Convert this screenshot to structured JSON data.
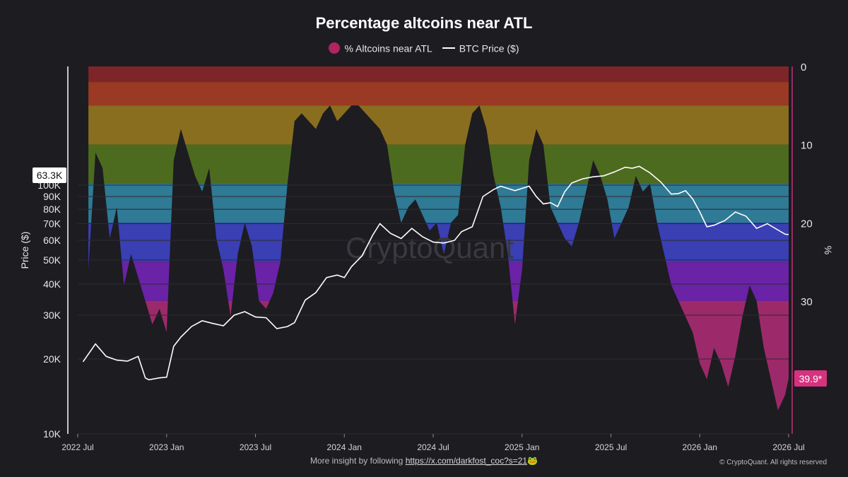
{
  "chart_data": {
    "type": "area",
    "title": "Percentage altcoins near ATL",
    "legend": [
      {
        "label": "% Altcoins near ATL",
        "color": "#b0245f",
        "kind": "dot"
      },
      {
        "label": "BTC Price ($)",
        "color": "#ffffff",
        "kind": "line"
      }
    ],
    "ylabel_left": "Price ($)",
    "ylabel_right": "%",
    "left_axis": {
      "scale": "log",
      "range": [
        10000,
        300000
      ],
      "ticks": [
        "10K",
        "20K",
        "30K",
        "40K",
        "50K",
        "60K",
        "70K",
        "80K",
        "90K",
        "100K"
      ]
    },
    "right_axis": {
      "range": [
        0,
        47
      ],
      "inverted": true,
      "ticks": [
        "0",
        "10",
        "20",
        "30"
      ]
    },
    "x_ticks": [
      "2022 Jul",
      "2023 Jan",
      "2023 Jul",
      "2024 Jan",
      "2024 Jul",
      "2025 Jan",
      "2025 Jul",
      "2026 Jan",
      "2026 Jul"
    ],
    "bands": [
      {
        "from": 0,
        "to": 2,
        "color": "#7e2529"
      },
      {
        "from": 2,
        "to": 5,
        "color": "#9a3a24"
      },
      {
        "from": 5,
        "to": 10,
        "color": "#8a6e1f"
      },
      {
        "from": 10,
        "to": 15,
        "color": "#4d6b1f"
      },
      {
        "from": 15,
        "to": 20,
        "color": "#2f7a95"
      },
      {
        "from": 20,
        "to": 25,
        "color": "#3a3fb4"
      },
      {
        "from": 25,
        "to": 30,
        "color": "#6a22a6"
      },
      {
        "from": 30,
        "to": 47,
        "color": "#9c2a6a"
      }
    ],
    "altcoin_pct": {
      "x": [
        2022.56,
        2022.6,
        2022.64,
        2022.68,
        2022.72,
        2022.76,
        2022.8,
        2022.84,
        2022.88,
        2022.92,
        2022.96,
        2023.0,
        2023.04,
        2023.08,
        2023.12,
        2023.16,
        2023.2,
        2023.24,
        2023.28,
        2023.32,
        2023.36,
        2023.4,
        2023.44,
        2023.48,
        2023.52,
        2023.56,
        2023.6,
        2023.64,
        2023.68,
        2023.72,
        2023.76,
        2023.8,
        2023.84,
        2023.88,
        2023.92,
        2023.96,
        2024.0,
        2024.04,
        2024.08,
        2024.12,
        2024.16,
        2024.2,
        2024.24,
        2024.28,
        2024.32,
        2024.36,
        2024.4,
        2024.44,
        2024.48,
        2024.52,
        2024.56,
        2024.6,
        2024.64,
        2024.68,
        2024.72,
        2024.76,
        2024.8,
        2024.84,
        2024.88,
        2024.92,
        2024.96,
        2025.0,
        2025.04,
        2025.08,
        2025.12,
        2025.16,
        2025.2,
        2025.24,
        2025.28,
        2025.32,
        2025.36,
        2025.4,
        2025.44,
        2025.48,
        2025.52,
        2025.56,
        2025.6,
        2025.64,
        2025.68,
        2025.72,
        2025.76,
        2025.8,
        2025.84,
        2025.88,
        2025.92,
        2025.96,
        2026.0,
        2026.04,
        2026.08,
        2026.12,
        2026.16,
        2026.2,
        2026.24,
        2026.28,
        2026.32,
        2026.36,
        2026.4,
        2026.44,
        2026.48,
        2026.5
      ],
      "values": [
        26,
        11,
        13,
        22,
        18,
        28,
        24,
        27,
        30,
        33,
        31,
        34,
        12,
        8,
        11,
        14,
        16,
        13,
        22,
        26,
        32,
        24,
        20,
        23,
        30,
        31,
        29,
        25,
        15,
        7,
        6,
        7,
        8,
        6,
        5,
        7,
        6,
        5,
        5,
        6,
        7,
        8,
        10,
        16,
        20,
        18,
        17,
        19,
        21,
        20,
        24,
        20,
        19,
        10,
        6,
        5,
        8,
        14,
        18,
        24,
        33,
        26,
        12,
        8,
        10,
        18,
        20,
        22,
        23,
        20,
        16,
        12,
        14,
        17,
        22,
        20,
        18,
        14,
        16,
        15,
        20,
        24,
        28,
        30,
        32,
        34,
        38,
        40,
        36,
        38,
        41,
        37,
        32,
        28,
        30,
        36,
        40,
        44,
        42,
        39.9
      ]
    },
    "btc_price": {
      "x": [
        2022.53,
        2022.6,
        2022.66,
        2022.72,
        2022.78,
        2022.84,
        2022.88,
        2022.9,
        2022.96,
        2023.0,
        2023.04,
        2023.08,
        2023.14,
        2023.2,
        2023.26,
        2023.32,
        2023.38,
        2023.44,
        2023.5,
        2023.56,
        2023.62,
        2023.68,
        2023.72,
        2023.78,
        2023.84,
        2023.9,
        2023.96,
        2024.0,
        2024.04,
        2024.1,
        2024.16,
        2024.2,
        2024.26,
        2024.32,
        2024.38,
        2024.44,
        2024.5,
        2024.56,
        2024.62,
        2024.66,
        2024.72,
        2024.78,
        2024.84,
        2024.88,
        2024.92,
        2024.96,
        2025.0,
        2025.04,
        2025.08,
        2025.12,
        2025.16,
        2025.2,
        2025.24,
        2025.28,
        2025.34,
        2025.4,
        2025.46,
        2025.52,
        2025.58,
        2025.62,
        2025.66,
        2025.72,
        2025.78,
        2025.84,
        2025.88,
        2025.92,
        2025.96,
        2026.0,
        2026.04,
        2026.08,
        2026.14,
        2026.2,
        2026.26,
        2026.32,
        2026.38,
        2026.44,
        2026.48,
        2026.5
      ],
      "values": [
        19500,
        23000,
        20500,
        19800,
        19600,
        20500,
        16800,
        16500,
        16800,
        16900,
        22500,
        24500,
        27000,
        28500,
        27800,
        27200,
        30000,
        31000,
        29500,
        29300,
        26500,
        27000,
        28000,
        34500,
        37000,
        42500,
        43500,
        42500,
        47000,
        52000,
        63000,
        70000,
        64000,
        61000,
        67000,
        62000,
        59000,
        58500,
        60000,
        65000,
        68000,
        90000,
        96000,
        99000,
        97000,
        95000,
        97000,
        99000,
        90000,
        84000,
        85000,
        82000,
        94000,
        102000,
        106000,
        108000,
        109000,
        113000,
        118000,
        117000,
        119000,
        112000,
        103000,
        92000,
        92500,
        95000,
        88000,
        78000,
        68000,
        69000,
        72000,
        78000,
        75000,
        67000,
        70000,
        66000,
        63500,
        63300
      ]
    },
    "current_labels": {
      "price": "63.3K",
      "percent": "39.9*"
    },
    "watermark": "CryptoQuant"
  },
  "footer": {
    "text": "More insight by following",
    "link": "https://x.com/darkfost_coc?s=21",
    "emoji": "🐸",
    "copyright": "© CryptoQuant. All rights reserved"
  }
}
